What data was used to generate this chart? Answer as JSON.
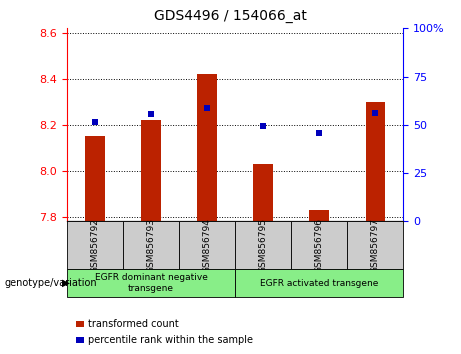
{
  "title": "GDS4496 / 154066_at",
  "samples": [
    "GSM856792",
    "GSM856793",
    "GSM856794",
    "GSM856795",
    "GSM856796",
    "GSM856797"
  ],
  "red_values": [
    8.15,
    8.22,
    8.42,
    8.03,
    7.83,
    8.3
  ],
  "blue_values": [
    8.21,
    8.245,
    8.275,
    8.195,
    8.165,
    8.25
  ],
  "ylim_left": [
    7.78,
    8.62
  ],
  "ylim_right": [
    0,
    100
  ],
  "yticks_left": [
    7.8,
    8.0,
    8.2,
    8.4,
    8.6
  ],
  "yticks_right": [
    0,
    25,
    50,
    75,
    100
  ],
  "group1_label": "EGFR dominant negative\ntransgene",
  "group2_label": "EGFR activated transgene",
  "legend_red": "transformed count",
  "legend_blue": "percentile rank within the sample",
  "xlabel_label": "genotype/variation",
  "bar_color": "#bb2200",
  "dot_color": "#0000bb",
  "group_bg": "#88ee88",
  "sample_bg": "#cccccc",
  "bar_width": 0.35,
  "dot_size": 22,
  "title_fontsize": 10,
  "tick_fontsize": 8,
  "label_fontsize": 7.5
}
